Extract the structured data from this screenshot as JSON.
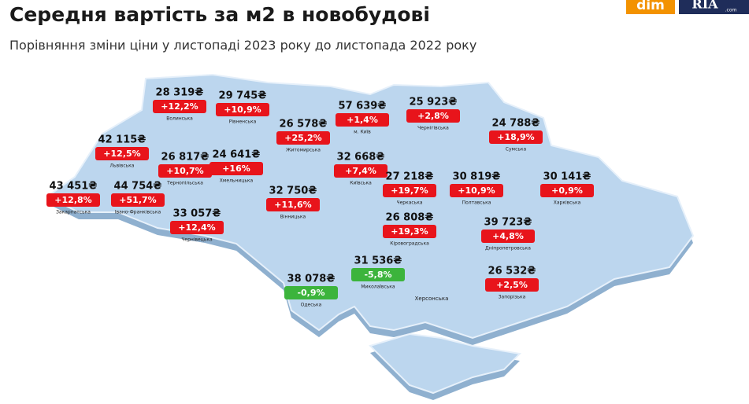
{
  "header": {
    "title": "Середня вартість за м2 в новобудові",
    "subtitle": "Порівняння зміни ціни у листопаді 2023 року до листопада 2022 року"
  },
  "logo": {
    "left": "dim",
    "right": "RIA",
    "suffix": ".com"
  },
  "regions": [
    {
      "name": "Волинська",
      "price": "28 319₴",
      "change": "+12,2%",
      "color": "#e8141b"
    },
    {
      "name": "Рівненська",
      "price": "29 745₴",
      "change": "+10,9%",
      "color": "#e8141b"
    },
    {
      "name": "м. Київ",
      "price": "57 639₴",
      "change": "+1,4%",
      "color": "#e8141b"
    },
    {
      "name": "Чернігівська",
      "price": "25 923₴",
      "change": "+2,8%",
      "color": "#e8141b"
    },
    {
      "name": "Житомирська",
      "price": "26 578₴",
      "change": "+25,2%",
      "color": "#e8141b"
    },
    {
      "name": "Сумська",
      "price": "24 788₴",
      "change": "+18,9%",
      "color": "#e8141b"
    },
    {
      "name": "Львівська",
      "price": "42 115₴",
      "change": "+12,5%",
      "color": "#e8141b"
    },
    {
      "name": "Тернопільська",
      "price": "26 817₴",
      "change": "+10,7%",
      "color": "#e8141b"
    },
    {
      "name": "Хмельницька",
      "price": "24 641₴",
      "change": "+16%",
      "color": "#e8141b"
    },
    {
      "name": "Київська",
      "price": "32 668₴",
      "change": "+7,4%",
      "color": "#e8141b"
    },
    {
      "name": "Черкаська",
      "price": "27 218₴",
      "change": "+19,7%",
      "color": "#e8141b"
    },
    {
      "name": "Полтавська",
      "price": "30 819₴",
      "change": "+10,9%",
      "color": "#e8141b"
    },
    {
      "name": "Харківська",
      "price": "30 141₴",
      "change": "+0,9%",
      "color": "#e8141b"
    },
    {
      "name": "Закарпатська",
      "price": "43 451₴",
      "change": "+12,8%",
      "color": "#e8141b"
    },
    {
      "name": "Івано-Франківська",
      "price": "44 754₴",
      "change": "+51,7%",
      "color": "#e8141b"
    },
    {
      "name": "Вінницька",
      "price": "32 750₴",
      "change": "+11,6%",
      "color": "#e8141b"
    },
    {
      "name": "Чернівецька",
      "price": "33 057₴",
      "change": "+12,4%",
      "color": "#e8141b"
    },
    {
      "name": "Кіровоградська",
      "price": "26 808₴",
      "change": "+19,3%",
      "color": "#e8141b"
    },
    {
      "name": "Дніпропетровська",
      "price": "39 723₴",
      "change": "+4,8%",
      "color": "#e8141b"
    },
    {
      "name": "Миколаївська",
      "price": "31 536₴",
      "change": "-5,8%",
      "color": "#3cb43c"
    },
    {
      "name": "Запорізька",
      "price": "26 532₴",
      "change": "+2,5%",
      "color": "#e8141b"
    },
    {
      "name": "Одеська",
      "price": "38 078₴",
      "change": "-0,9%",
      "color": "#3cb43c"
    },
    {
      "name": "Херсонська"
    }
  ]
}
